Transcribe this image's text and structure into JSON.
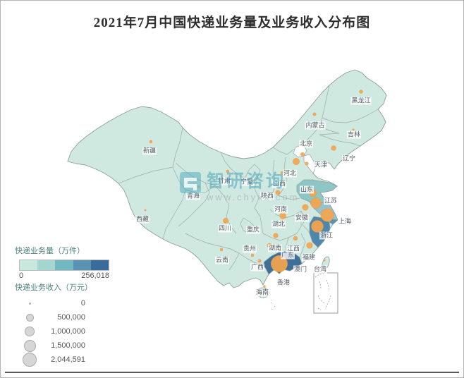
{
  "title": "2021年7月中国快递业务量及业务收入分布图",
  "watermark": {
    "brand": "智研咨询",
    "url": "www.chyxx.com",
    "logo_color": "#57aec0"
  },
  "legend": {
    "volume_title": "快递业务量（万件）",
    "volume_min": "0",
    "volume_max": "256,018",
    "volume_colors": [
      "#c9e8dd",
      "#a3d6ce",
      "#72b8c3",
      "#5a92b4",
      "#3a6b9d"
    ],
    "revenue_title": "快递业务收入（万元）",
    "revenue_sizes": [
      {
        "label": "0",
        "r": 1.5
      },
      {
        "label": "500,000",
        "r": 5.5
      },
      {
        "label": "1,000,000",
        "r": 7
      },
      {
        "label": "1,500,000",
        "r": 8.5
      },
      {
        "label": "2,044,591",
        "r": 10
      }
    ]
  },
  "chart_data": {
    "type": "map-bubble",
    "title": "2021年7月中国快递业务量及业务收入分布图",
    "volume_scale": {
      "label": "快递业务量（万件）",
      "min": 0,
      "max": 256018
    },
    "revenue_scale": {
      "label": "快递业务收入（万元）",
      "min": 0,
      "max": 2044591
    },
    "bubble_color": "#F5A54E",
    "base_fill": "#cfe9e1",
    "provinces": [
      {
        "name": "新疆",
        "label": [
          211,
          213
        ],
        "bubble": [
          213,
          200
        ],
        "r": 2.0,
        "volume_class": 0
      },
      {
        "name": "西藏",
        "label": [
          201,
          310
        ],
        "bubble": [
          205,
          297
        ],
        "r": 1.2,
        "volume_class": 0
      },
      {
        "name": "青海",
        "label": [
          273,
          277
        ],
        "bubble": [
          281,
          264
        ],
        "r": 1.5,
        "volume_class": 0
      },
      {
        "name": "甘肃",
        "label": [
          317,
          256
        ],
        "bubble": [
          322,
          242
        ],
        "r": 2.0,
        "volume_class": 0
      },
      {
        "name": "宁夏",
        "label": [
          349,
          257
        ],
        "bubble": [
          352,
          253
        ],
        "r": 1.5,
        "volume_class": 0
      },
      {
        "name": "内蒙古",
        "label": [
          446,
          177
        ],
        "bubble": [
          445,
          161
        ],
        "r": 2.2,
        "volume_class": 0
      },
      {
        "name": "黑龙江",
        "label": [
          511,
          142
        ],
        "bubble": [
          511,
          129
        ],
        "r": 2.5,
        "volume_class": 0
      },
      {
        "name": "吉林",
        "label": [
          501,
          190
        ],
        "bubble": [
          500,
          183
        ],
        "r": 1.3,
        "volume_class": 0
      },
      {
        "name": "辽宁",
        "label": [
          494,
          224
        ],
        "bubble": [
          472,
          209
        ],
        "r": 3.5,
        "volume_class": 0
      },
      {
        "name": "北京",
        "label": [
          433,
          203
        ],
        "bubble": [
          428,
          218
        ],
        "r": 2.7,
        "volume_class": 0
      },
      {
        "name": "天津",
        "label": [
          454,
          233
        ],
        "bubble": [
          434,
          231
        ],
        "r": 2.3,
        "volume_class": 0
      },
      {
        "name": "河北",
        "label": [
          410,
          245
        ],
        "bubble": [
          419,
          228
        ],
        "r": 4.7,
        "volume_class": 1
      },
      {
        "name": "山西",
        "label": [
          395,
          260
        ],
        "bubble": [
          399,
          244
        ],
        "r": 2.0,
        "volume_class": 0
      },
      {
        "name": "山东",
        "label": [
          434,
          268
        ],
        "bubble": [
          443,
          273
        ],
        "r": 5.0,
        "volume_class": 2
      },
      {
        "name": "陕西",
        "label": [
          378,
          277
        ],
        "bubble": [
          393,
          272
        ],
        "r": 3.2,
        "volume_class": 0
      },
      {
        "name": "河南",
        "label": [
          397,
          296
        ],
        "bubble": [
          400,
          305
        ],
        "r": 4.5,
        "volume_class": 1
      },
      {
        "name": "江苏",
        "label": [
          468,
          284
        ],
        "bubble": [
          447,
          287
        ],
        "r": 7.5,
        "volume_class": 2
      },
      {
        "name": "上海",
        "label": [
          488,
          313
        ],
        "bubble": [
          463,
          304
        ],
        "r": 9.2,
        "volume_class": 3
      },
      {
        "name": "安徽",
        "label": [
          427,
          308
        ],
        "bubble": [
          432,
          293
        ],
        "r": 4.3,
        "volume_class": 1
      },
      {
        "name": "浙江",
        "label": [
          462,
          333
        ],
        "bubble": [
          449,
          320
        ],
        "r": 8.5,
        "volume_class": 3
      },
      {
        "name": "湖北",
        "label": [
          394,
          317
        ],
        "bubble": [
          390,
          333
        ],
        "r": 3.3,
        "volume_class": 0
      },
      {
        "name": "四川",
        "label": [
          318,
          323
        ],
        "bubble": [
          319,
          312
        ],
        "r": 3.7,
        "volume_class": 0
      },
      {
        "name": "重庆",
        "label": [
          358,
          325
        ],
        "bubble": [
          352,
          322
        ],
        "r": 2.3,
        "volume_class": 0
      },
      {
        "name": "贵州",
        "label": [
          353,
          352
        ],
        "bubble": [
          357,
          361
        ],
        "r": 2.0,
        "volume_class": 0
      },
      {
        "name": "湖南",
        "label": [
          389,
          351
        ],
        "bubble": [
          381,
          347
        ],
        "r": 3.0,
        "volume_class": 0
      },
      {
        "name": "江西",
        "label": [
          415,
          352
        ],
        "bubble": [
          418,
          337
        ],
        "r": 3.0,
        "volume_class": 0
      },
      {
        "name": "广东",
        "label": [
          407,
          361
        ],
        "bubble": [
          395,
          373
        ],
        "r": 11.7,
        "volume_class": 4
      },
      {
        "name": "福建",
        "label": [
          437,
          364
        ],
        "bubble": [
          438,
          347
        ],
        "r": 4.3,
        "volume_class": 1
      },
      {
        "name": "云南",
        "label": [
          314,
          368
        ],
        "bubble": [
          313,
          353
        ],
        "r": 2.0,
        "volume_class": 0
      },
      {
        "name": "广西",
        "label": [
          364,
          378
        ],
        "bubble": [
          367,
          369
        ],
        "r": 2.3,
        "volume_class": 0
      },
      {
        "name": "澳门",
        "label": [
          425,
          381
        ],
        "bubble": null,
        "r": 0,
        "volume_class": 0
      },
      {
        "name": "台湾",
        "label": [
          453,
          381
        ],
        "bubble": [
          459,
          368
        ],
        "r": 1.3,
        "volume_class": 0
      },
      {
        "name": "香港",
        "label": [
          401,
          400
        ],
        "bubble": null,
        "r": 0,
        "volume_class": 0
      },
      {
        "name": "海南",
        "label": [
          371,
          414
        ],
        "bubble": [
          374,
          405
        ],
        "r": 1.5,
        "volume_class": 0
      }
    ]
  }
}
